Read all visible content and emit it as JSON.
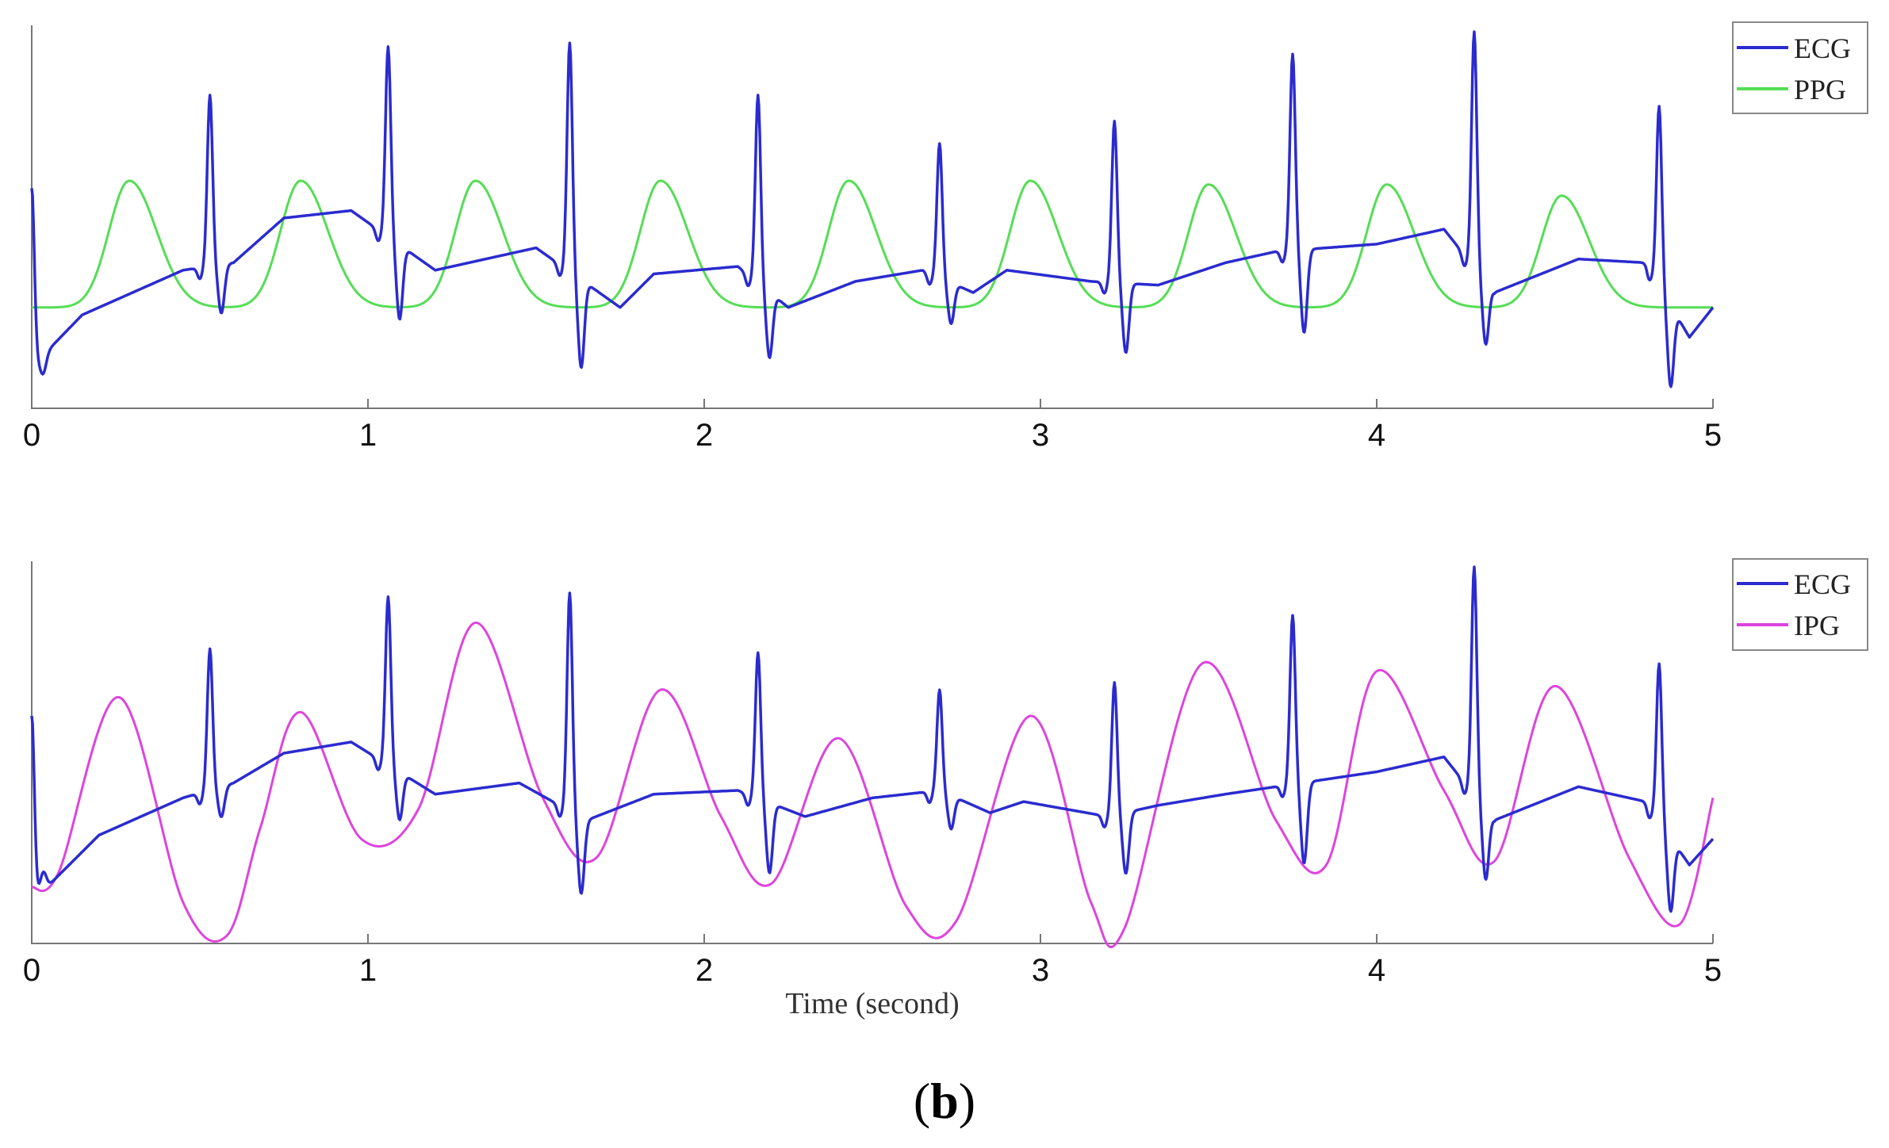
{
  "caption": {
    "open": "(",
    "letter": "b",
    "close": ")"
  },
  "colors": {
    "ECG": "#2b2bd0",
    "PPG": "#55dd55",
    "IPG": "#dd44dd"
  },
  "chart_data": [
    {
      "type": "line",
      "xlim": [
        0,
        5
      ],
      "ylim": [
        0,
        1
      ],
      "xticks": [
        "0",
        "1",
        "2",
        "3",
        "4",
        "5"
      ],
      "xlabel": "",
      "legend": {
        "position": "top-right",
        "entries": [
          "ECG",
          "PPG"
        ]
      },
      "series": [
        {
          "name": "ECG",
          "type": "ecg",
          "color": "#2b2bd0",
          "beats": [
            0.0,
            0.53,
            1.06,
            1.6,
            2.16,
            2.7,
            3.22,
            3.75,
            4.29,
            4.84
          ],
          "peaks": [
            0.58,
            0.83,
            0.96,
            0.97,
            0.83,
            0.7,
            0.76,
            0.94,
            1.0,
            0.8
          ],
          "troughs": [
            0.05,
            0.24,
            0.25,
            0.12,
            0.15,
            0.23,
            0.14,
            0.19,
            0.2,
            0.1
          ],
          "baseline": [
            [
              0.0,
              0.1
            ],
            [
              0.15,
              0.24
            ],
            [
              0.45,
              0.36
            ],
            [
              0.6,
              0.38
            ],
            [
              0.75,
              0.5
            ],
            [
              0.95,
              0.52
            ],
            [
              1.2,
              0.36
            ],
            [
              1.5,
              0.42
            ],
            [
              1.75,
              0.26
            ],
            [
              1.85,
              0.35
            ],
            [
              2.1,
              0.37
            ],
            [
              2.25,
              0.26
            ],
            [
              2.45,
              0.33
            ],
            [
              2.65,
              0.36
            ],
            [
              2.8,
              0.3
            ],
            [
              2.9,
              0.36
            ],
            [
              3.15,
              0.33
            ],
            [
              3.35,
              0.32
            ],
            [
              3.55,
              0.38
            ],
            [
              3.7,
              0.41
            ],
            [
              4.0,
              0.43
            ],
            [
              4.2,
              0.47
            ],
            [
              4.35,
              0.3
            ],
            [
              4.6,
              0.39
            ],
            [
              4.8,
              0.38
            ],
            [
              4.93,
              0.18
            ],
            [
              5.0,
              0.26
            ]
          ]
        },
        {
          "name": "PPG",
          "type": "pulse",
          "color": "#55dd55",
          "base": 0.26,
          "width": 0.085,
          "peaks": [
            [
              0.29,
              0.6
            ],
            [
              0.8,
              0.6
            ],
            [
              1.32,
              0.6
            ],
            [
              1.87,
              0.6
            ],
            [
              2.43,
              0.6
            ],
            [
              2.97,
              0.6
            ],
            [
              3.5,
              0.59
            ],
            [
              4.03,
              0.59
            ],
            [
              4.55,
              0.56
            ]
          ]
        }
      ]
    },
    {
      "type": "line",
      "xlim": [
        0,
        5
      ],
      "ylim": [
        0,
        1
      ],
      "xticks": [
        "0",
        "1",
        "2",
        "3",
        "4",
        "5"
      ],
      "xlabel": "Time (second)",
      "legend": {
        "position": "top-right",
        "entries": [
          "ECG",
          "IPG"
        ]
      },
      "series": [
        {
          "name": "ECG",
          "type": "ecg",
          "color": "#2b2bd0",
          "beats": [
            0.0,
            0.53,
            1.06,
            1.6,
            2.16,
            2.7,
            3.22,
            3.75,
            4.29,
            4.84
          ],
          "peaks": [
            0.6,
            0.78,
            0.92,
            0.93,
            0.77,
            0.67,
            0.69,
            0.87,
            1.0,
            0.74
          ],
          "troughs": [
            0.15,
            0.32,
            0.34,
            0.14,
            0.19,
            0.31,
            0.17,
            0.2,
            0.2,
            0.12
          ],
          "baseline": [
            [
              0.0,
              0.1
            ],
            [
              0.2,
              0.28
            ],
            [
              0.45,
              0.38
            ],
            [
              0.6,
              0.42
            ],
            [
              0.75,
              0.5
            ],
            [
              0.95,
              0.53
            ],
            [
              1.2,
              0.39
            ],
            [
              1.45,
              0.42
            ],
            [
              1.65,
              0.32
            ],
            [
              1.85,
              0.39
            ],
            [
              2.1,
              0.4
            ],
            [
              2.3,
              0.33
            ],
            [
              2.5,
              0.38
            ],
            [
              2.7,
              0.4
            ],
            [
              2.85,
              0.34
            ],
            [
              2.95,
              0.37
            ],
            [
              3.2,
              0.33
            ],
            [
              3.35,
              0.36
            ],
            [
              3.55,
              0.39
            ],
            [
              3.7,
              0.41
            ],
            [
              4.0,
              0.45
            ],
            [
              4.2,
              0.49
            ],
            [
              4.35,
              0.32
            ],
            [
              4.6,
              0.41
            ],
            [
              4.8,
              0.37
            ],
            [
              4.93,
              0.2
            ],
            [
              5.0,
              0.27
            ]
          ]
        },
        {
          "name": "IPG",
          "type": "spline",
          "color": "#dd44dd",
          "points": [
            [
              0.0,
              0.14
            ],
            [
              0.08,
              0.18
            ],
            [
              0.26,
              0.65
            ],
            [
              0.45,
              0.1
            ],
            [
              0.58,
              0.01
            ],
            [
              0.68,
              0.3
            ],
            [
              0.8,
              0.61
            ],
            [
              0.98,
              0.27
            ],
            [
              1.15,
              0.35
            ],
            [
              1.32,
              0.85
            ],
            [
              1.52,
              0.38
            ],
            [
              1.68,
              0.22
            ],
            [
              1.87,
              0.67
            ],
            [
              2.05,
              0.33
            ],
            [
              2.2,
              0.15
            ],
            [
              2.4,
              0.54
            ],
            [
              2.6,
              0.09
            ],
            [
              2.75,
              0.05
            ],
            [
              2.97,
              0.6
            ],
            [
              3.15,
              0.1
            ],
            [
              3.25,
              0.03
            ],
            [
              3.48,
              0.74
            ],
            [
              3.7,
              0.32
            ],
            [
              3.85,
              0.2
            ],
            [
              4.0,
              0.72
            ],
            [
              4.2,
              0.4
            ],
            [
              4.35,
              0.21
            ],
            [
              4.53,
              0.68
            ],
            [
              4.75,
              0.22
            ],
            [
              4.9,
              0.04
            ],
            [
              5.0,
              0.38
            ]
          ]
        }
      ]
    }
  ]
}
